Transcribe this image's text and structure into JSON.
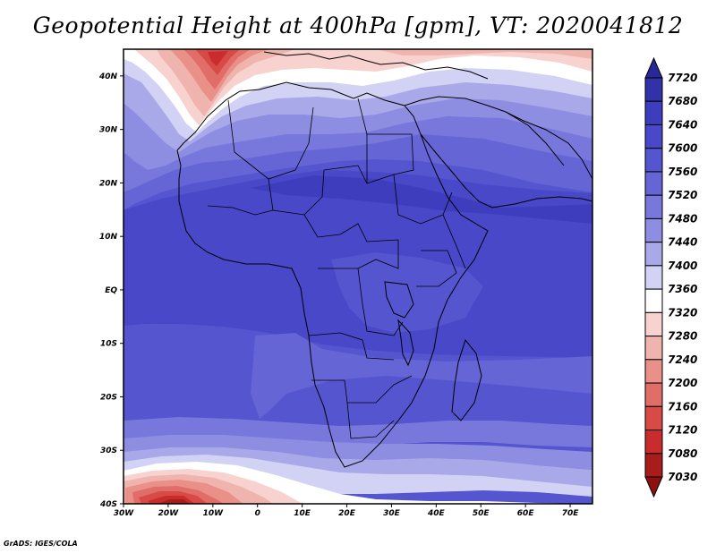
{
  "title": "Geopotential Height at 400hPa [gpm], VT: 2020041812",
  "footer": "GrADS: IGES/COLA",
  "chart_data": {
    "type": "heatmap",
    "variable": "Geopotential Height",
    "level": "400hPa",
    "units": "gpm",
    "valid_time": "2020041812",
    "lon_labels": [
      "30W",
      "20W",
      "10W",
      "0",
      "10E",
      "20E",
      "30E",
      "40E",
      "50E",
      "60E",
      "70E"
    ],
    "lat_labels": [
      "40N",
      "30N",
      "20N",
      "10N",
      "EQ",
      "10S",
      "20S",
      "30S",
      "40S"
    ],
    "xlim": [
      -30,
      75
    ],
    "ylim": [
      -40,
      45
    ],
    "colorbar": {
      "labels": [
        "7720",
        "7680",
        "7640",
        "7600",
        "7560",
        "7520",
        "7480",
        "7440",
        "7400",
        "7360",
        "7320",
        "7280",
        "7240",
        "7200",
        "7160",
        "7120",
        "7080",
        "7030"
      ],
      "colors": [
        "#282896",
        "#3131a8",
        "#3d3dbd",
        "#4848c8",
        "#5555d0",
        "#6565d6",
        "#7777dc",
        "#8d8de2",
        "#a9a9e9",
        "#d2d2f4",
        "#ffffff",
        "#f7d2cf",
        "#f0b4ae",
        "#e99089",
        "#e06d67",
        "#d84a46",
        "#c82c2c",
        "#a81c1c",
        "#8c1010"
      ]
    }
  }
}
